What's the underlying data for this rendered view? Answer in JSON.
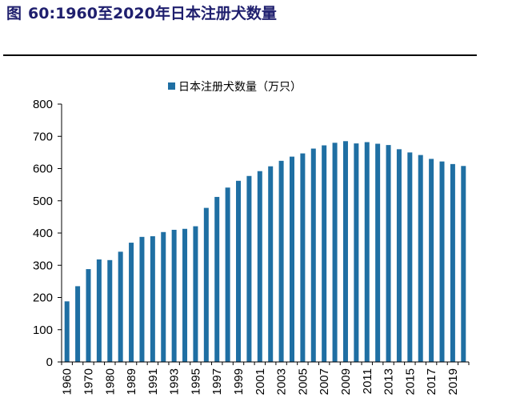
{
  "figure": {
    "label": "图",
    "number": "60:",
    "title": "1960至2020年日本注册犬数量"
  },
  "chart_data": {
    "type": "bar",
    "series": [
      {
        "name": "日本注册犬数量（万只）",
        "values": [
          188,
          235,
          288,
          318,
          316,
          342,
          370,
          388,
          390,
          403,
          410,
          413,
          421,
          478,
          512,
          541,
          562,
          577,
          592,
          607,
          624,
          637,
          647,
          662,
          672,
          680,
          685,
          678,
          682,
          677,
          673,
          660,
          650,
          642,
          630,
          622,
          614,
          608
        ]
      }
    ],
    "categories": [
      "1960",
      "1965",
      "1970",
      "1975",
      "1980",
      "1985",
      "1989",
      "1990",
      "1991",
      "1992",
      "1993",
      "1994",
      "1995",
      "1996",
      "1997",
      "1998",
      "1999",
      "2000",
      "2001",
      "2002",
      "2003",
      "2004",
      "2005",
      "2006",
      "2007",
      "2008",
      "2009",
      "2010",
      "2011",
      "2012",
      "2013",
      "2014",
      "2015",
      "2016",
      "2017",
      "2018",
      "2019",
      "2020"
    ],
    "tick_labels": [
      "1960",
      "1970",
      "1980",
      "1989",
      "1991",
      "1993",
      "1995",
      "1997",
      "1999",
      "2001",
      "2003",
      "2005",
      "2007",
      "2009",
      "2011",
      "2013",
      "2015",
      "2017",
      "2019"
    ],
    "y_ticks": [
      0,
      100,
      200,
      300,
      400,
      500,
      600,
      700,
      800
    ],
    "ylim": [
      0,
      800
    ],
    "legend_position": "top-center",
    "grid": false,
    "colors": {
      "bar": "#1f6fa3",
      "axis": "#000000",
      "title": "#1f1f6e"
    }
  }
}
